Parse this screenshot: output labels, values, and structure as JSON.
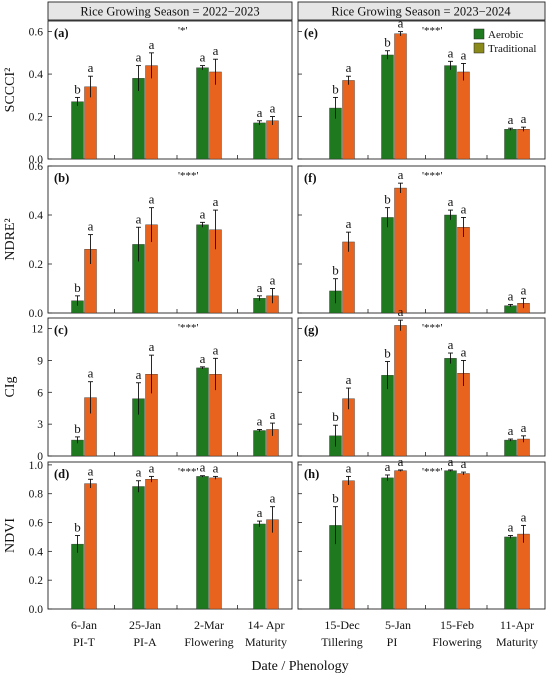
{
  "colors": {
    "aerobic": "#1f7a1f",
    "traditional": "#e8641e"
  },
  "header": {
    "left_title": "Rice Growing Season = 2022−2023",
    "right_title": "Rice Growing Season = 2023−2024"
  },
  "legend": {
    "aerobic": "Aerobic",
    "traditional": "Traditional",
    "placement": "top-right of panel (e)"
  },
  "x_axis_label": "Date / Phenology",
  "x_labels": {
    "left": [
      {
        "date": "6-Jan",
        "stage": "PI-T"
      },
      {
        "date": "25-Jan",
        "stage": "PI-A"
      },
      {
        "date": "2-Mar",
        "stage": "Flowering"
      },
      {
        "date": "14- Apr",
        "stage": "Maturity"
      }
    ],
    "right": [
      {
        "date": "15-Dec",
        "stage": "Tillering"
      },
      {
        "date": "5-Jan",
        "stage": "PI"
      },
      {
        "date": "15-Feb",
        "stage": "Flowering"
      },
      {
        "date": "11-Apr",
        "stage": "Maturity"
      }
    ]
  },
  "chart_data": [
    {
      "type": "bar",
      "row": 0,
      "season": "left",
      "panel_label": "(a)",
      "sig": "'*'",
      "ylabel": "SCCCI²",
      "ylim": [
        0,
        0.65
      ],
      "yticks": [
        "0.0",
        "0.2",
        "0.4",
        "0.6"
      ],
      "ytick_values": [
        0,
        0.2,
        0.4,
        0.6
      ],
      "series": [
        {
          "name": "Aerobic",
          "values": [
            0.27,
            0.38,
            0.43,
            0.17
          ],
          "errors": [
            0.02,
            0.06,
            0.01,
            0.01
          ],
          "letters": [
            "b",
            "a",
            "a",
            "a"
          ]
        },
        {
          "name": "Traditional",
          "values": [
            0.34,
            0.44,
            0.41,
            0.18
          ],
          "errors": [
            0.05,
            0.06,
            0.06,
            0.02
          ],
          "letters": [
            "a",
            "a",
            "a",
            "a"
          ]
        }
      ]
    },
    {
      "type": "bar",
      "row": 0,
      "season": "right",
      "panel_label": "(e)",
      "sig": "'***'",
      "ylim": [
        0,
        0.65
      ],
      "ytick_values": [
        0,
        0.2,
        0.4,
        0.6
      ],
      "series": [
        {
          "name": "Aerobic",
          "values": [
            0.24,
            0.49,
            0.44,
            0.14
          ],
          "errors": [
            0.05,
            0.02,
            0.02,
            0.005
          ],
          "letters": [
            "b",
            "b",
            "a",
            "a"
          ]
        },
        {
          "name": "Traditional",
          "values": [
            0.37,
            0.59,
            0.41,
            0.14
          ],
          "errors": [
            0.02,
            0.01,
            0.04,
            0.01
          ],
          "letters": [
            "a",
            "a",
            "a",
            "a"
          ]
        }
      ]
    },
    {
      "type": "bar",
      "row": 1,
      "season": "left",
      "panel_label": "(b)",
      "sig": "'***'",
      "ylabel": "NDRE²",
      "ylim": [
        0,
        0.6
      ],
      "yticks": [
        "0.0",
        "0.2",
        "0.4",
        "0.6"
      ],
      "ytick_values": [
        0,
        0.2,
        0.4,
        0.6
      ],
      "series": [
        {
          "name": "Aerobic",
          "values": [
            0.05,
            0.28,
            0.36,
            0.06
          ],
          "errors": [
            0.02,
            0.07,
            0.01,
            0.01
          ],
          "letters": [
            "b",
            "a",
            "a",
            "a"
          ]
        },
        {
          "name": "Traditional",
          "values": [
            0.26,
            0.36,
            0.34,
            0.07
          ],
          "errors": [
            0.06,
            0.07,
            0.08,
            0.03
          ],
          "letters": [
            "a",
            "a",
            "a",
            "a"
          ]
        }
      ]
    },
    {
      "type": "bar",
      "row": 1,
      "season": "right",
      "panel_label": "(f)",
      "sig": "'***'",
      "ylim": [
        0,
        0.6
      ],
      "ytick_values": [
        0,
        0.2,
        0.4,
        0.6
      ],
      "series": [
        {
          "name": "Aerobic",
          "values": [
            0.09,
            0.39,
            0.4,
            0.03
          ],
          "errors": [
            0.05,
            0.04,
            0.02,
            0.005
          ],
          "letters": [
            "b",
            "b",
            "a",
            "a"
          ]
        },
        {
          "name": "Traditional",
          "values": [
            0.29,
            0.51,
            0.35,
            0.04
          ],
          "errors": [
            0.04,
            0.02,
            0.04,
            0.02
          ],
          "letters": [
            "a",
            "a",
            "a",
            "a"
          ]
        }
      ]
    },
    {
      "type": "bar",
      "row": 2,
      "season": "left",
      "panel_label": "(c)",
      "sig": "'***'",
      "ylabel": "CIg",
      "ylim": [
        0,
        13
      ],
      "yticks": [
        "0",
        "3",
        "6",
        "9",
        "12"
      ],
      "ytick_values": [
        0,
        3,
        6,
        9,
        12
      ],
      "series": [
        {
          "name": "Aerobic",
          "values": [
            1.5,
            5.4,
            8.3,
            2.4
          ],
          "errors": [
            0.3,
            1.5,
            0.1,
            0.1
          ],
          "letters": [
            "b",
            "a",
            "a",
            "a"
          ]
        },
        {
          "name": "Traditional",
          "values": [
            5.5,
            7.7,
            7.7,
            2.5
          ],
          "errors": [
            1.5,
            1.8,
            1.5,
            0.6
          ],
          "letters": [
            "a",
            "a",
            "a",
            "a"
          ]
        }
      ]
    },
    {
      "type": "bar",
      "row": 2,
      "season": "right",
      "panel_label": "(g)",
      "sig": "'***'",
      "ylim": [
        0,
        13
      ],
      "ytick_values": [
        0,
        3,
        6,
        9,
        12
      ],
      "series": [
        {
          "name": "Aerobic",
          "values": [
            1.9,
            7.6,
            9.2,
            1.5
          ],
          "errors": [
            1.0,
            1.3,
            0.5,
            0.1
          ],
          "letters": [
            "b",
            "b",
            "a",
            "a"
          ]
        },
        {
          "name": "Traditional",
          "values": [
            5.4,
            12.3,
            7.8,
            1.6
          ],
          "errors": [
            1.0,
            0.5,
            1.2,
            0.3
          ],
          "letters": [
            "a",
            "a",
            "a",
            "a"
          ]
        }
      ]
    },
    {
      "type": "bar",
      "row": 3,
      "season": "left",
      "panel_label": "(d)",
      "sig": "'***'",
      "ylabel": "NDVI",
      "ylim": [
        0,
        1.02
      ],
      "yticks": [
        "0.0",
        "0.2",
        "0.4",
        "0.6",
        "0.8",
        "1.0"
      ],
      "ytick_values": [
        0,
        0.2,
        0.4,
        0.6,
        0.8,
        1.0
      ],
      "series": [
        {
          "name": "Aerobic",
          "values": [
            0.45,
            0.85,
            0.92,
            0.59
          ],
          "errors": [
            0.06,
            0.04,
            0.005,
            0.02
          ],
          "letters": [
            "b",
            "a",
            "a",
            "a"
          ]
        },
        {
          "name": "Traditional",
          "values": [
            0.87,
            0.9,
            0.91,
            0.62
          ],
          "errors": [
            0.03,
            0.02,
            0.01,
            0.09
          ],
          "letters": [
            "a",
            "a",
            "a",
            "a"
          ]
        }
      ]
    },
    {
      "type": "bar",
      "row": 3,
      "season": "right",
      "panel_label": "(h)",
      "sig": "'***'",
      "ylim": [
        0,
        1.02
      ],
      "ytick_values": [
        0,
        0.2,
        0.4,
        0.6,
        0.8,
        1.0
      ],
      "series": [
        {
          "name": "Aerobic",
          "values": [
            0.58,
            0.91,
            0.96,
            0.5
          ],
          "errors": [
            0.13,
            0.02,
            0.005,
            0.01
          ],
          "letters": [
            "b",
            "a",
            "a",
            "a"
          ]
        },
        {
          "name": "Traditional",
          "values": [
            0.89,
            0.96,
            0.94,
            0.52
          ],
          "errors": [
            0.03,
            0.005,
            0.01,
            0.06
          ],
          "letters": [
            "a",
            "a",
            "a",
            "a"
          ]
        }
      ]
    }
  ]
}
